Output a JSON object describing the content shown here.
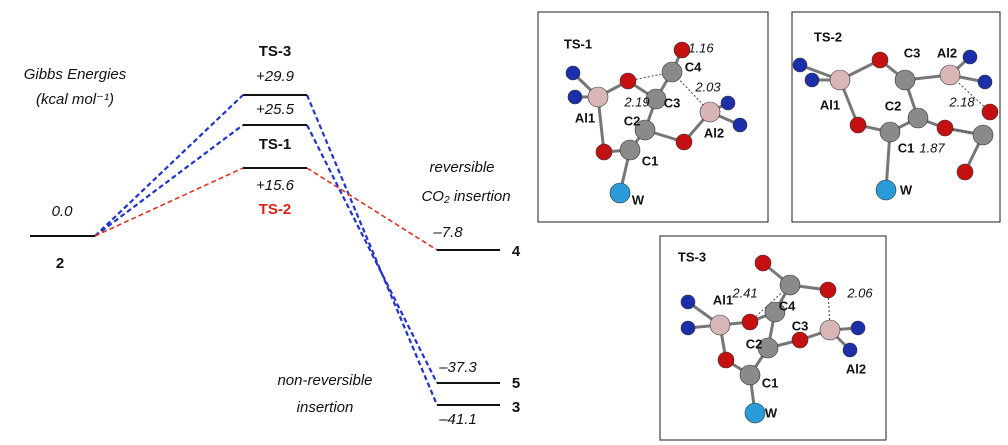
{
  "energy_diagram": {
    "axis_label": [
      "Gibbs Energies",
      "(kcal mol⁻¹)"
    ],
    "levels": [
      {
        "label": "2",
        "energy": "0.0"
      },
      {
        "label": "TS-3",
        "energy": "+29.9"
      },
      {
        "label": "TS-1",
        "energy": "+25.5"
      },
      {
        "label": "TS-2",
        "energy": "+15.6"
      },
      {
        "label": "4",
        "energy": "–7.8"
      },
      {
        "label": "5",
        "energy": "–37.3"
      },
      {
        "label": "3",
        "energy": "–41.1"
      }
    ],
    "notes": [
      [
        "reversible",
        "CO₂ insertion"
      ],
      [
        "non-reversible",
        "insertion"
      ]
    ]
  },
  "structures": [
    {
      "title": "TS-1",
      "atom_labels": [
        "C4",
        "C3",
        "Al1",
        "C2",
        "Al2",
        "C1",
        "W"
      ],
      "distances": [
        "1.16",
        "2.19",
        "2.03"
      ]
    },
    {
      "title": "TS-2",
      "atom_labels": [
        "C3",
        "Al2",
        "Al1",
        "C2",
        "C1",
        "W"
      ],
      "distances": [
        "2.18",
        "1.87"
      ]
    },
    {
      "title": "TS-3",
      "atom_labels": [
        "C4",
        "Al1",
        "C3",
        "C2",
        "Al2",
        "C1",
        "W"
      ],
      "distances": [
        "2.41",
        "2.06"
      ]
    }
  ]
}
